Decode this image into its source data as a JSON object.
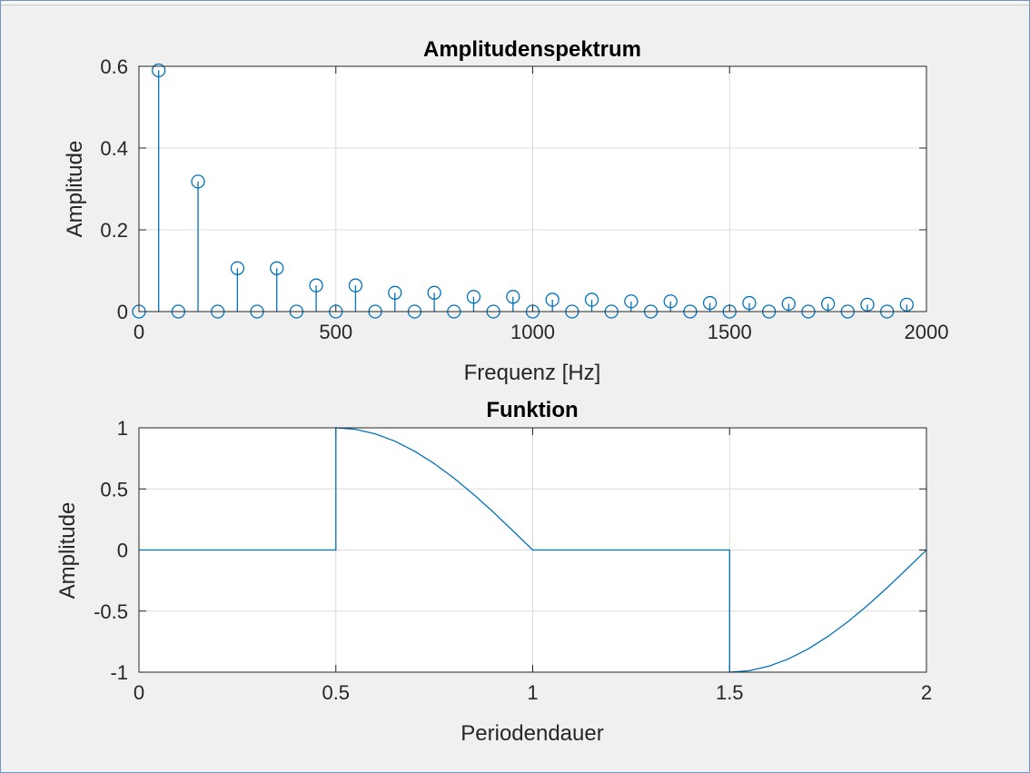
{
  "colors": {
    "series": "#0072bd",
    "grid": "#dcdcdc",
    "axes": "#262626",
    "background": "#f0f0f0"
  },
  "chart_data": [
    {
      "type": "stem",
      "title": "Amplitudenspektrum",
      "xlabel": "Frequenz [Hz]",
      "ylabel": "Amplitude",
      "xlim": [
        0,
        2000
      ],
      "ylim": [
        0,
        0.6
      ],
      "grid": true,
      "xticks": [
        0,
        500,
        1000,
        1500,
        2000
      ],
      "xtick_labels": [
        "0",
        "500",
        "1000",
        "1500",
        "2000"
      ],
      "yticks": [
        0,
        0.2,
        0.4,
        0.6
      ],
      "ytick_labels": [
        "0",
        "0.2",
        "0.4",
        "0.6"
      ],
      "x": [
        0,
        50,
        100,
        150,
        200,
        250,
        300,
        350,
        400,
        450,
        500,
        550,
        600,
        650,
        700,
        750,
        800,
        850,
        900,
        950,
        1000,
        1050,
        1100,
        1150,
        1200,
        1250,
        1300,
        1350,
        1400,
        1450,
        1500,
        1550,
        1600,
        1650,
        1700,
        1750,
        1800,
        1850,
        1900,
        1950
      ],
      "y": [
        0,
        0.59,
        0,
        0.318,
        0,
        0.106,
        0,
        0.106,
        0,
        0.064,
        0,
        0.064,
        0,
        0.046,
        0,
        0.046,
        0,
        0.036,
        0,
        0.036,
        0,
        0.029,
        0,
        0.029,
        0,
        0.025,
        0,
        0.025,
        0,
        0.021,
        0,
        0.021,
        0,
        0.019,
        0,
        0.019,
        0,
        0.017,
        0,
        0.017
      ]
    },
    {
      "type": "line",
      "title": "Funktion",
      "xlabel": "Periodendauer",
      "ylabel": "Amplitude",
      "xlim": [
        0,
        2
      ],
      "ylim": [
        -1,
        1
      ],
      "grid": true,
      "xticks": [
        0,
        0.5,
        1,
        1.5,
        2
      ],
      "xtick_labels": [
        "0",
        "0.5",
        "1",
        "1.5",
        "2"
      ],
      "yticks": [
        -1,
        -0.5,
        0,
        0.5,
        1
      ],
      "ytick_labels": [
        "-1",
        "-0.5",
        "0",
        "0.5",
        "1"
      ],
      "x": [
        0,
        0.5,
        0.5,
        0.55,
        0.6,
        0.65,
        0.7,
        0.75,
        0.8,
        0.85,
        0.9,
        0.95,
        1.0,
        1.5,
        1.5,
        1.55,
        1.6,
        1.65,
        1.7,
        1.75,
        1.8,
        1.85,
        1.9,
        1.95,
        2.0
      ],
      "y": [
        0,
        0,
        1,
        0.988,
        0.951,
        0.891,
        0.809,
        0.707,
        0.588,
        0.454,
        0.309,
        0.156,
        0,
        0,
        -1,
        -0.988,
        -0.951,
        -0.891,
        -0.809,
        -0.707,
        -0.588,
        -0.454,
        -0.309,
        -0.156,
        0
      ]
    }
  ]
}
